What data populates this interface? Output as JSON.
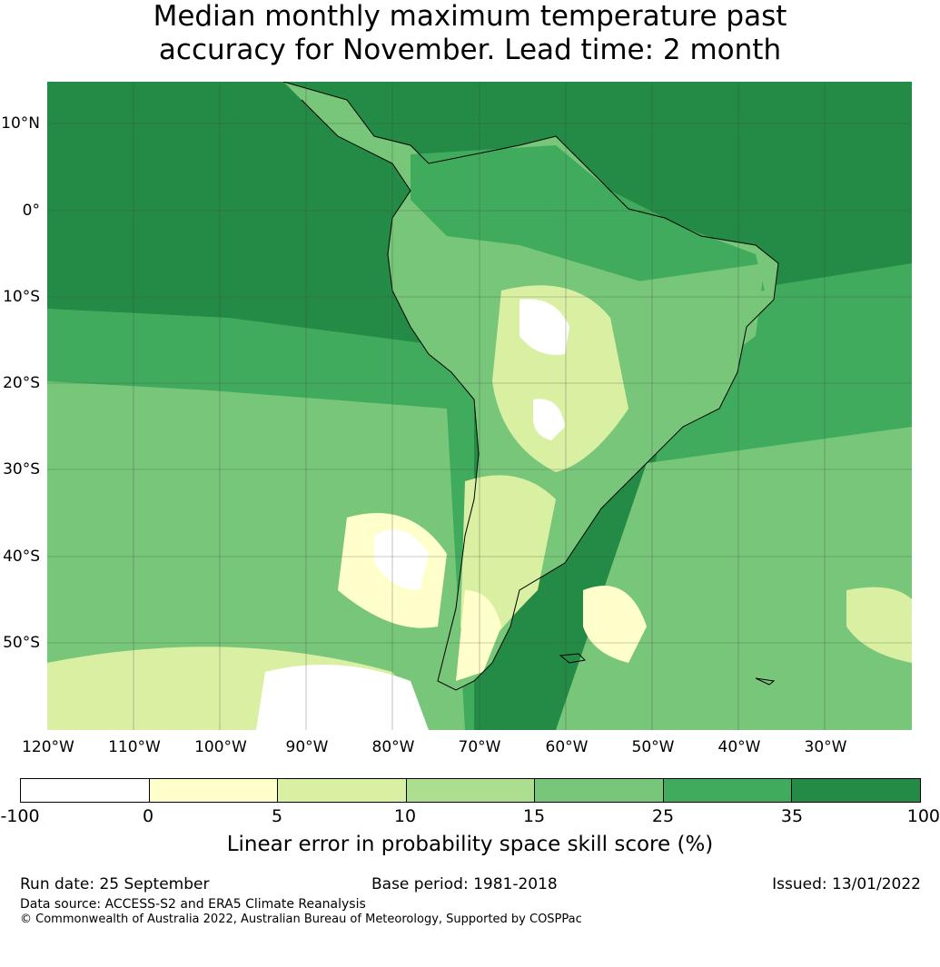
{
  "title": {
    "line1": "Median monthly maximum temperature past",
    "line2": "accuracy for November. Lead time: 2 month"
  },
  "map": {
    "lat_labels": [
      "10°N",
      "0°",
      "10°S",
      "20°S",
      "30°S",
      "40°S",
      "50°S"
    ],
    "lon_labels": [
      "120°W",
      "110°W",
      "100°W",
      "90°W",
      "80°W",
      "70°W",
      "60°W",
      "50°W",
      "40°W",
      "30°W"
    ],
    "colors": {
      "c0": "#ffffff",
      "c1": "#ffffcc",
      "c2": "#d9f0a3",
      "c3": "#addd8e",
      "c4": "#78c679",
      "c5": "#41ab5d",
      "c6": "#238b45"
    }
  },
  "colorbar": {
    "ticks": [
      "-100",
      "0",
      "5",
      "10",
      "15",
      "25",
      "35",
      "100"
    ],
    "label": "Linear error in probability space skill score (%)"
  },
  "footer": {
    "run_date": "Run date: 25 September",
    "base_period": "Base period: 1981-2018",
    "issued": "Issued: 13/01/2022",
    "data_source": "Data source: ACCESS-S2 and ERA5 Climate Reanalysis",
    "copyright": "© Commonwealth of Australia 2022, Australian Bureau of Meteorology, Supported by COSPPac"
  }
}
